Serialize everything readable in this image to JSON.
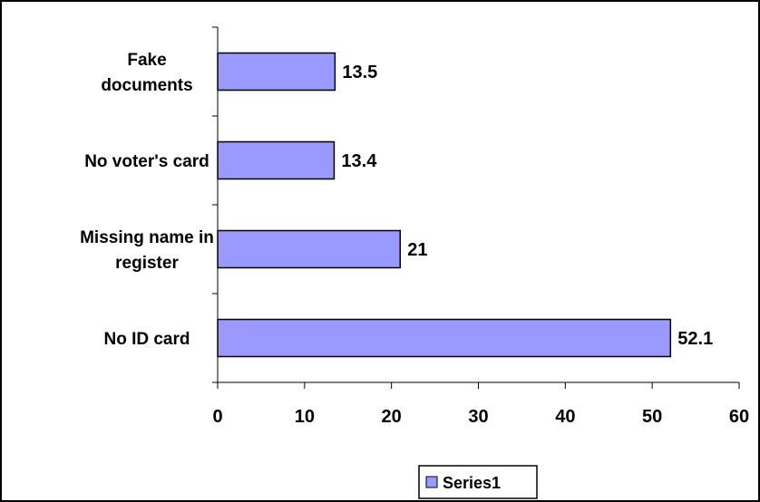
{
  "chart_data": {
    "type": "bar",
    "orientation": "horizontal",
    "categories": [
      "No ID card",
      "Missing name in register",
      "No voter's card",
      "Fake documents"
    ],
    "category_lines": [
      [
        "No ID card"
      ],
      [
        "Missing name in",
        "register"
      ],
      [
        "No voter's card"
      ],
      [
        "Fake",
        "documents"
      ]
    ],
    "series": [
      {
        "name": "Series1",
        "values": [
          52.1,
          21,
          13.4,
          13.5
        ]
      }
    ],
    "data_labels": [
      "52.1",
      "21",
      "13.4",
      "13.5"
    ],
    "xlim": [
      0,
      60
    ],
    "xticks": [
      0,
      10,
      20,
      30,
      40,
      50,
      60
    ],
    "title": "",
    "xlabel": "",
    "ylabel": "",
    "grid": false,
    "legend": {
      "position": "bottom",
      "labels": [
        "Series1"
      ]
    },
    "colors": {
      "bar_fill": "#9999ff",
      "bar_stroke": "#000000",
      "axis": "#000000",
      "frame": "#000000"
    }
  }
}
